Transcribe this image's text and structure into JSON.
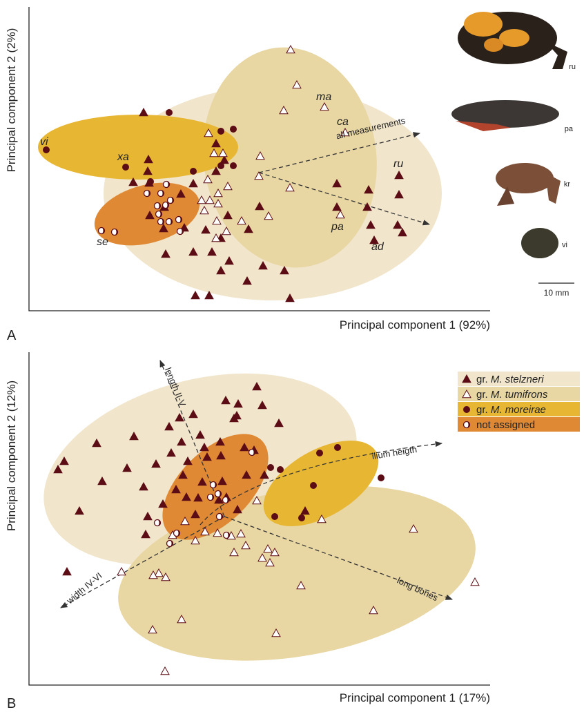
{
  "chart_data": [
    {
      "type": "scatter",
      "panel_label": "A",
      "x_label": "Principal component 1 (92%)",
      "y_label": "Principal component 2 (2%)",
      "xlim": [
        0,
        668
      ],
      "ylim": [
        0,
        440
      ],
      "annotations": [
        "vi",
        "xa",
        "se",
        "ma",
        "ca",
        "ru",
        "pa",
        "ad"
      ],
      "arrow_labels": [
        "all measurements"
      ],
      "photo_labels": [
        "ru",
        "pa",
        "kr",
        "vi"
      ],
      "scale_bar": "10 mm",
      "series": [
        {
          "marker": "triangle-filled",
          "color": "#5b0c14",
          "region_color": "#f1e5cb",
          "x": [
            166,
            173,
            172,
            151,
            174,
            271,
            283,
            271,
            238,
            220,
            196,
            175,
            195,
            225,
            256,
            288,
            278,
            318,
            334,
            198,
            238,
            265,
            290,
            316,
            339,
            370,
            278,
            241,
            261,
            378,
            446,
            446,
            492,
            536,
            536,
            490,
            495,
            534,
            500,
            541
          ],
          "values": [
            287,
            219,
            202,
            186,
            185,
            242,
            218,
            202,
            184,
            169,
            150,
            138,
            119,
            120,
            117,
            138,
            105,
            118,
            151,
            82,
            85,
            85,
            72,
            43,
            65,
            58,
            58,
            22,
            22,
            18,
            184,
            150,
            175,
            196,
            168,
            150,
            124,
            124,
            102,
            113
          ]
        },
        {
          "marker": "triangle-open",
          "color": "#5b0c14",
          "region_color": "#e8d6a3",
          "x": [
            379,
            388,
            369,
            428,
            458,
            260,
            281,
            268,
            335,
            333,
            259,
            288,
            274,
            250,
            262,
            274,
            254,
            272,
            308,
            286,
            347,
            378,
            451,
            271
          ],
          "values": [
            378,
            327,
            290,
            295,
            258,
            257,
            228,
            228,
            224,
            195,
            190,
            180,
            170,
            160,
            160,
            155,
            145,
            130,
            130,
            115,
            137,
            178,
            139,
            105
          ]
        },
        {
          "marker": "circle-filled",
          "color": "#5b0c14",
          "region_color": "#e7b734",
          "x": [
            25,
            203,
            278,
            296,
            278,
            296,
            238,
            140,
            176
          ],
          "values": [
            233,
            287,
            260,
            263,
            210,
            210,
            202,
            208,
            187
          ]
        },
        {
          "marker": "circle-half",
          "color": "#5b0c14",
          "region_color": "#e08935",
          "x": [
            199,
            171,
            191,
            205,
            186,
            198,
            188,
            203,
            191,
            217,
            219,
            105,
            124
          ],
          "values": [
            183,
            170,
            170,
            160,
            152,
            153,
            140,
            129,
            129,
            132,
            115,
            116,
            114
          ]
        }
      ]
    },
    {
      "type": "scatter",
      "panel_label": "B",
      "x_label": "Principal component 1 (17%)",
      "y_label": "Principal component 2 (12%)",
      "xlim": [
        0,
        668
      ],
      "ylim": [
        0,
        482
      ],
      "arrow_labels": [
        "length II-V",
        "ilium heigth",
        "width IV-VI",
        "long bones"
      ],
      "series": [
        {
          "name": "gr. M. stelzneri",
          "marker": "triangle-filled",
          "color": "#5b0c14",
          "region_color": "#f1e5cb",
          "x": [
            51,
            42,
            98,
            73,
            106,
            55,
            152,
            142,
            166,
            172,
            169,
            194,
            184,
            203,
            206,
            218,
            221,
            223,
            213,
            238,
            248,
            230,
            228,
            254,
            258,
            251,
            245,
            241,
            277,
            280,
            275,
            302,
            286,
            297,
            312,
            326,
            315,
            341,
            285,
            303,
            330,
            338,
            362,
            400,
            301,
            278
          ],
          "values": [
            324,
            312,
            350,
            252,
            295,
            164,
            360,
            314,
            287,
            244,
            218,
            262,
            320,
            374,
            336,
            387,
            352,
            304,
            283,
            392,
            362,
            324,
            272,
            344,
            330,
            294,
            271,
            247,
            352,
            295,
            268,
            254,
            272,
            386,
            344,
            340,
            304,
            304,
            412,
            407,
            432,
            405,
            379,
            252,
            390,
            332
          ]
        },
        {
          "name": "gr. M. tumifrons",
          "marker": "triangle-open",
          "color": "#5b0c14",
          "region_color": "#e8d6a3",
          "x": [
            134,
            188,
            198,
            180,
            179,
            221,
            197,
            208,
            241,
            255,
            273,
            293,
            297,
            307,
            314,
            338,
            346,
            349,
            356,
            330,
            358,
            394,
            424,
            499,
            557,
            646,
            226
          ],
          "values": [
            164,
            162,
            156,
            159,
            80,
            95,
            20,
            217,
            209,
            222,
            220,
            216,
            192,
            219,
            202,
            184,
            197,
            177,
            192,
            267,
            75,
            144,
            240,
            108,
            226,
            149,
            237
          ]
        },
        {
          "name": "gr. M. moreirae",
          "marker": "circle-filled",
          "color": "#5b0c14",
          "region_color": "#e7b734",
          "x": [
            350,
            364,
            356,
            395,
            412,
            421,
            447,
            510
          ],
          "values": [
            315,
            312,
            244,
            242,
            289,
            336,
            344,
            300
          ]
        },
        {
          "name": "not assigned",
          "marker": "circle-half",
          "color": "#5b0c14",
          "region_color": "#e08935",
          "x": [
            323,
            267,
            263,
            274,
            285,
            186,
            214,
            204,
            286,
            276
          ],
          "values": [
            337,
            290,
            272,
            277,
            268,
            235,
            220,
            205,
            217,
            244
          ]
        }
      ]
    }
  ]
}
